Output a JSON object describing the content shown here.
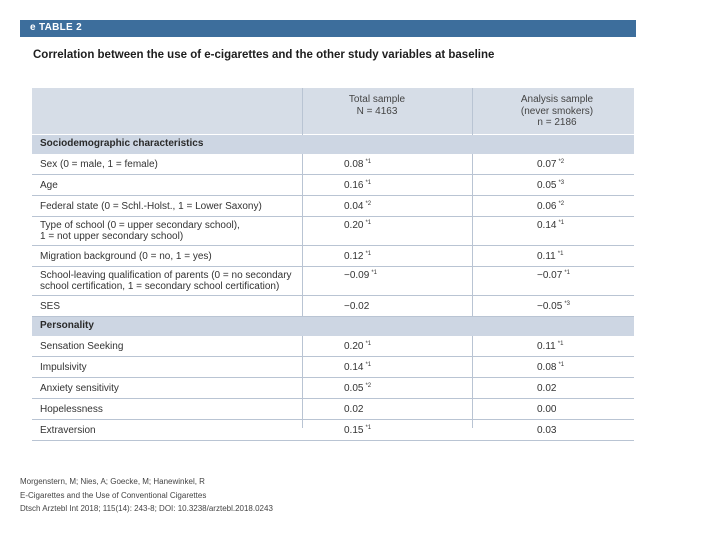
{
  "label": "e TABLE 2",
  "caption": "Correlation between the use of e-cigarettes and the other study variables at baseline",
  "columns": [
    [
      "Total sample",
      "N = 4163"
    ],
    [
      "Analysis sample",
      "(never smokers)",
      "n = 2186"
    ]
  ],
  "sections": [
    {
      "title": "Sociodemographic characteristics",
      "rows": [
        {
          "lines": [
            "Sex (0 = male, 1 = female)"
          ],
          "v1": "0.08",
          "s1": "*1",
          "v2": "0.07",
          "s2": "*2"
        },
        {
          "lines": [
            "Age"
          ],
          "v1": "0.16",
          "s1": "*1",
          "v2": "0.05",
          "s2": "*3"
        },
        {
          "lines": [
            "Federal state (0 = Schl.-Holst., 1 = Lower Saxony)"
          ],
          "v1": "0.04",
          "s1": "*2",
          "v2": "0.06",
          "s2": "*2"
        },
        {
          "lines": [
            "Type of school (0 = upper secondary school),",
            "1 = not upper secondary school)"
          ],
          "v1": "0.20",
          "s1": "*1",
          "v2": "0.14",
          "s2": "*1"
        },
        {
          "lines": [
            "Migration background (0 = no, 1 = yes)"
          ],
          "v1": "0.12",
          "s1": "*1",
          "v2": "0.11",
          "s2": "*1"
        },
        {
          "lines": [
            "School-leaving qualification of parents (0 = no secondary",
            "school certification, 1 = secondary school certification)"
          ],
          "v1": "−0.09",
          "s1": "*1",
          "v2": "−0.07",
          "s2": "*1"
        },
        {
          "lines": [
            "SES"
          ],
          "v1": "−0.02",
          "s1": "",
          "v2": "−0.05",
          "s2": "*3"
        }
      ]
    },
    {
      "title": "Personality",
      "rows": [
        {
          "lines": [
            "Sensation Seeking"
          ],
          "v1": "0.20",
          "s1": "*1",
          "v2": "0.11",
          "s2": "*1"
        },
        {
          "lines": [
            "Impulsivity"
          ],
          "v1": "0.14",
          "s1": "*1",
          "v2": "0.08",
          "s2": "*1"
        },
        {
          "lines": [
            "Anxiety sensitivity"
          ],
          "v1": "0.05",
          "s1": "*2",
          "v2": "0.02",
          "s2": ""
        },
        {
          "lines": [
            "Hopelessness"
          ],
          "v1": "0.02",
          "s1": "",
          "v2": "0.00",
          "s2": ""
        },
        {
          "lines": [
            "Extraversion"
          ],
          "v1": "0.15",
          "s1": "*1",
          "v2": "0.03",
          "s2": ""
        }
      ]
    }
  ],
  "source": [
    "Morgenstern, M; Nies, A; Goecke, M; Hanewinkel, R",
    "E-Cigarettes and the Use of Conventional Cigarettes",
    "Dtsch Arztebl Int 2018; 115(14): 243-8; DOI: 10.3238/arztebl.2018.0243"
  ]
}
